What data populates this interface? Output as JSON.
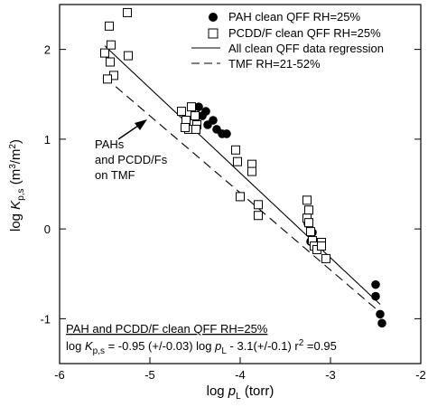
{
  "chart_data": {
    "type": "scatter",
    "xlabel": {
      "prefix": "log ",
      "var": "p",
      "sub": "L",
      "unit": " (torr)"
    },
    "ylabel": {
      "prefix": "log ",
      "var": "K",
      "sub": "p,s",
      "unit_open": " (m",
      "sup1": "3",
      "unit_mid": "/m",
      "sup2": "2",
      "unit_close": ")"
    },
    "xlim": [
      -6,
      -2
    ],
    "ylim": [
      -1.5,
      2.5
    ],
    "x_ticks": [
      "-6",
      "-5",
      "-4",
      "-3",
      "-2"
    ],
    "y_ticks": [
      "-1",
      "0",
      "1",
      "2"
    ],
    "legend_position": "top-right",
    "legend": [
      {
        "label": "PAH clean QFF RH=25%",
        "marker": "filled-circle"
      },
      {
        "label": "PCDD/F clean QFF RH=25%",
        "marker": "open-square"
      },
      {
        "label": "All clean QFF data regression",
        "line": "solid"
      },
      {
        "label": "TMF RH=21-52%",
        "line": "dashed"
      }
    ],
    "series": [
      {
        "name": "PAH clean QFF RH=25%",
        "marker": "filled-circle",
        "points": [
          [
            -4.46,
            1.36
          ],
          [
            -4.42,
            1.26
          ],
          [
            -4.38,
            1.31
          ],
          [
            -4.36,
            1.16
          ],
          [
            -4.3,
            1.21
          ],
          [
            -4.26,
            1.11
          ],
          [
            -4.2,
            1.06
          ],
          [
            -4.15,
            1.06
          ],
          [
            -3.25,
            0.06
          ],
          [
            -3.2,
            -0.04
          ],
          [
            -3.22,
            -0.14
          ],
          [
            -3.18,
            -0.19
          ],
          [
            -2.5,
            -0.62
          ],
          [
            -2.5,
            -0.75
          ],
          [
            -2.45,
            -0.95
          ],
          [
            -2.43,
            -1.05
          ]
        ]
      },
      {
        "name": "PCDD/F clean QFF RH=25%",
        "marker": "open-square",
        "points": [
          [
            -5.45,
            2.26
          ],
          [
            -5.25,
            2.41
          ],
          [
            -5.5,
            1.96
          ],
          [
            -5.44,
            1.86
          ],
          [
            -5.4,
            1.71
          ],
          [
            -5.47,
            1.67
          ],
          [
            -5.43,
            2.05
          ],
          [
            -5.24,
            1.93
          ],
          [
            -4.65,
            1.31
          ],
          [
            -4.6,
            1.21
          ],
          [
            -4.57,
            1.11
          ],
          [
            -4.54,
            1.36
          ],
          [
            -4.5,
            1.26
          ],
          [
            -4.48,
            1.16
          ],
          [
            -4.61,
            1.13
          ],
          [
            -4.49,
            1.11
          ],
          [
            -4.05,
            0.88
          ],
          [
            -4.03,
            0.75
          ],
          [
            -3.87,
            0.72
          ],
          [
            -3.87,
            0.64
          ],
          [
            -4.0,
            0.36
          ],
          [
            -3.8,
            0.27
          ],
          [
            -3.8,
            0.15
          ],
          [
            -3.26,
            0.32
          ],
          [
            -3.24,
            0.21
          ],
          [
            -3.26,
            0.12
          ],
          [
            -3.24,
            0.07
          ],
          [
            -3.22,
            -0.03
          ],
          [
            -3.2,
            -0.13
          ],
          [
            -3.18,
            -0.19
          ],
          [
            -3.15,
            -0.23
          ],
          [
            -3.1,
            -0.15
          ],
          [
            -3.1,
            -0.19
          ],
          [
            -3.05,
            -0.33
          ]
        ]
      }
    ],
    "lines": [
      {
        "name": "All clean QFF data regression",
        "style": "solid",
        "x": [
          -5.5,
          -2.45
        ],
        "y": [
          2.04,
          -0.84
        ]
      },
      {
        "name": "TMF RH=21-52%",
        "style": "dashed",
        "x": [
          -5.5,
          -2.45
        ],
        "y": [
          1.69,
          -0.93
        ]
      }
    ],
    "annotation": {
      "lines": [
        "PAHs",
        "and PCDD/Fs",
        "on TMF"
      ],
      "arrow_to": [
        -4.99,
        1.15
      ]
    },
    "equation": {
      "title": "PAH and PCDD/F clean QFF RH=25%",
      "t1": "log ",
      "t2": "K",
      "t3": "p,s",
      "t4": " = -0.95 (+/-0.03) log ",
      "t5": "p",
      "t6": "L",
      "t7": " - 3.1(+/-0.1) r",
      "t8": "2",
      "t9": " =0.95"
    }
  }
}
